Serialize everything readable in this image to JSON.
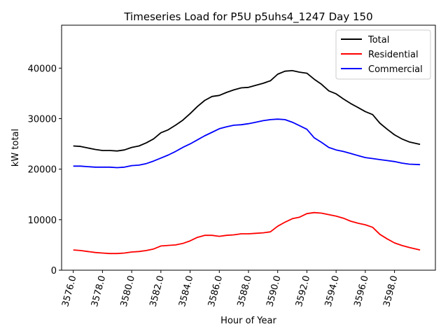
{
  "chart_data": {
    "type": "line",
    "title": "Timeseries Load for P5U p5uhs4_1247  Day 150",
    "xlabel": "Hour of Year",
    "ylabel": "kW total",
    "xlim": [
      3575.2,
      3600.8
    ],
    "ylim": [
      0,
      48500
    ],
    "xticks": [
      3576,
      3578,
      3580,
      3582,
      3584,
      3586,
      3588,
      3590,
      3592,
      3594,
      3596,
      3598
    ],
    "xtick_labels": [
      "3576.0",
      "3578.0",
      "3580.0",
      "3582.0",
      "3584.0",
      "3586.0",
      "3588.0",
      "3590.0",
      "3592.0",
      "3594.0",
      "3596.0",
      "3598.0"
    ],
    "yticks": [
      0,
      10000,
      20000,
      30000,
      40000
    ],
    "ytick_labels": [
      "0",
      "10000",
      "20000",
      "30000",
      "40000"
    ],
    "grid": false,
    "legend_position": "top-right",
    "x": [
      3576,
      3576.5,
      3577,
      3577.5,
      3578,
      3578.5,
      3579,
      3579.5,
      3580,
      3580.5,
      3581,
      3581.5,
      3582,
      3582.5,
      3583,
      3583.5,
      3584,
      3584.5,
      3585,
      3585.5,
      3586,
      3586.5,
      3587,
      3587.5,
      3588,
      3588.5,
      3589,
      3589.5,
      3590,
      3590.5,
      3591,
      3591.5,
      3592,
      3592.5,
      3593,
      3593.5,
      3594,
      3594.5,
      3595,
      3595.5,
      3596,
      3596.5,
      3597,
      3597.5,
      3598,
      3598.5,
      3599,
      3599.75
    ],
    "series": [
      {
        "name": "Total",
        "color": "#000000",
        "values": [
          24600,
          24500,
          24200,
          23900,
          23700,
          23700,
          23600,
          23800,
          24300,
          24600,
          25200,
          26000,
          27200,
          27800,
          28700,
          29700,
          31000,
          32400,
          33600,
          34400,
          34600,
          35200,
          35700,
          36100,
          36200,
          36600,
          37000,
          37500,
          38800,
          39400,
          39500,
          39200,
          39000,
          37800,
          36800,
          35500,
          34900,
          33900,
          33000,
          32200,
          31400,
          30800,
          29100,
          27900,
          26800,
          26000,
          25400,
          24900
        ]
      },
      {
        "name": "Residential",
        "color": "#ff0000",
        "values": [
          4000,
          3900,
          3700,
          3500,
          3400,
          3300,
          3300,
          3400,
          3600,
          3700,
          3900,
          4200,
          4800,
          4900,
          5000,
          5300,
          5800,
          6500,
          6900,
          6900,
          6700,
          6900,
          7000,
          7200,
          7200,
          7300,
          7400,
          7600,
          8700,
          9500,
          10200,
          10500,
          11200,
          11400,
          11300,
          11000,
          10700,
          10300,
          9700,
          9300,
          9000,
          8500,
          7100,
          6200,
          5400,
          4900,
          4500,
          4000
        ]
      },
      {
        "name": "Commercial",
        "color": "#0000ff",
        "values": [
          20600,
          20600,
          20500,
          20400,
          20400,
          20400,
          20300,
          20400,
          20700,
          20800,
          21100,
          21600,
          22200,
          22800,
          23500,
          24300,
          25000,
          25800,
          26600,
          27300,
          28000,
          28400,
          28700,
          28800,
          29000,
          29300,
          29600,
          29800,
          29900,
          29800,
          29300,
          28600,
          27900,
          26200,
          25300,
          24300,
          23800,
          23500,
          23100,
          22700,
          22300,
          22100,
          21900,
          21700,
          21500,
          21200,
          21000,
          20900
        ]
      }
    ]
  }
}
